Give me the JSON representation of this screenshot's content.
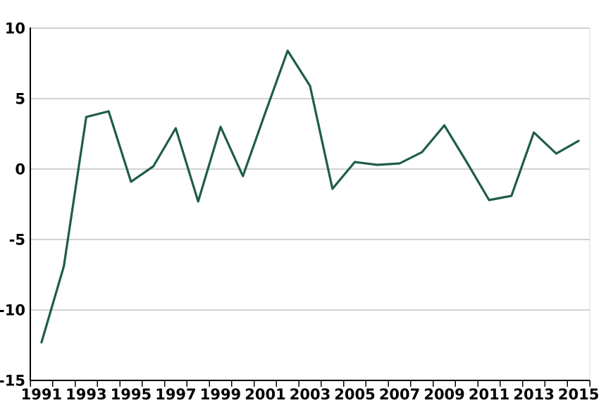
{
  "chart_data": {
    "type": "line",
    "title": "",
    "xlabel": "",
    "ylabel": "",
    "x": [
      1991,
      1992,
      1993,
      1994,
      1995,
      1996,
      1997,
      1998,
      1999,
      2000,
      2001,
      2002,
      2003,
      2004,
      2005,
      2006,
      2007,
      2008,
      2009,
      2010,
      2011,
      2012,
      2013,
      2014,
      2015
    ],
    "series": [
      {
        "name": "annual-value",
        "values": [
          -12.3,
          -6.9,
          3.7,
          4.1,
          -0.9,
          0.2,
          2.9,
          -2.3,
          3.0,
          -0.5,
          4.0,
          8.4,
          5.9,
          -1.4,
          0.5,
          0.3,
          0.4,
          1.2,
          3.1,
          0.5,
          -2.2,
          -1.9,
          2.6,
          1.1,
          2.0
        ]
      }
    ],
    "ylim": [
      -15,
      10
    ],
    "yticks": [
      10,
      5,
      0,
      -5,
      -10,
      -15
    ],
    "ytick_labels": [
      "10",
      "5",
      "0",
      "-5",
      "-10",
      "-15"
    ],
    "xtick_labels": [
      "1991",
      "1993",
      "1995",
      "1997",
      "1999",
      "2001",
      "2003",
      "2005",
      "2007",
      "2009",
      "2011",
      "2013",
      "2015"
    ],
    "xtick_label_every": 2,
    "grid": true,
    "legend_position": "none",
    "colors": {
      "line": "#1F5C4D",
      "gridline": "#A6A6A6",
      "axis": "#000000",
      "right_border": "#D9D9D9",
      "label": "#000000",
      "background": "#FFFFFF"
    }
  }
}
